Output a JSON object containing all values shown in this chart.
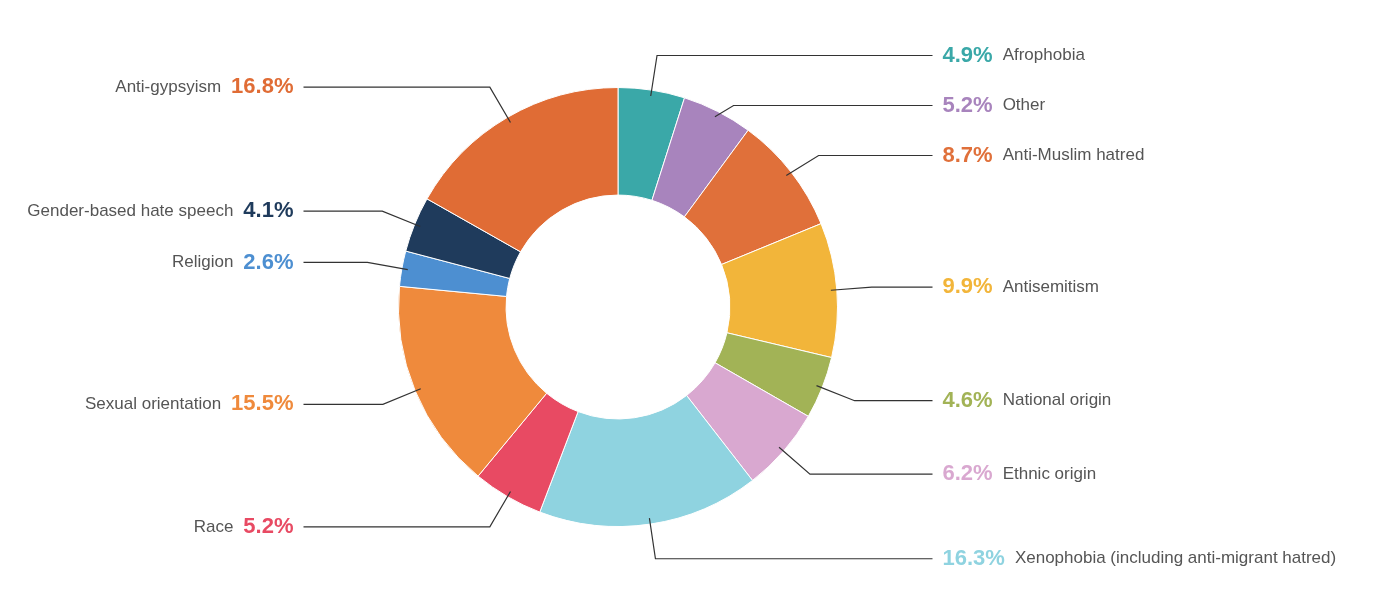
{
  "chart_data": {
    "type": "donut",
    "categories": [
      "Afrophobia",
      "Other",
      "Anti-Muslim hatred",
      "Antisemitism",
      "National origin",
      "Ethnic origin",
      "Xenophobia (including anti-migrant hatred)",
      "Race",
      "Sexual orientation",
      "Religion",
      "Gender-based hate speech",
      "Anti-gypsyism"
    ],
    "values": [
      4.9,
      5.2,
      8.7,
      9.9,
      4.6,
      6.2,
      16.3,
      5.2,
      15.5,
      2.6,
      4.1,
      16.8
    ],
    "value_labels": [
      "4.9%",
      "5.2%",
      "8.7%",
      "9.9%",
      "4.6%",
      "6.2%",
      "16.3%",
      "5.2%",
      "15.5%",
      "2.6%",
      "4.1%",
      "16.8%"
    ],
    "colors": [
      "#3aa8a8",
      "#a884bd",
      "#e0703a",
      "#f2b53a",
      "#a2b356",
      "#d9a8d0",
      "#8fd3e0",
      "#e84a63",
      "#ef8a3c",
      "#4d8fd1",
      "#1f3b5c",
      "#e06c35"
    ],
    "legend": false
  }
}
